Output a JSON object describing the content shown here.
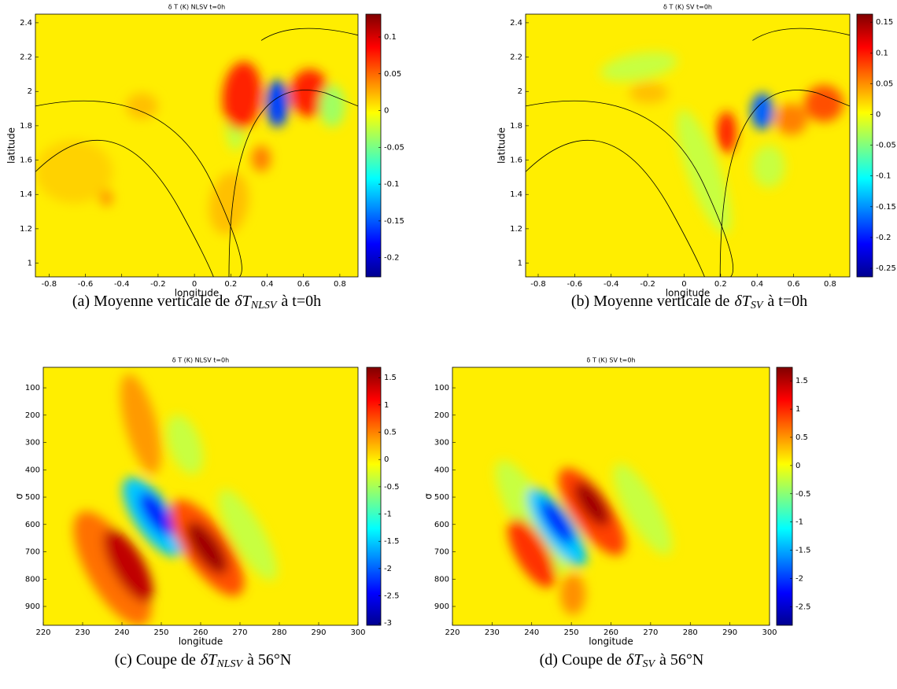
{
  "chart_data": [
    {
      "type": "contour",
      "title": "δ T (K) NLSV t=0h",
      "xlabel": "longitude",
      "ylabel": "latitude",
      "xlim": [
        -0.875,
        0.9
      ],
      "xticks": [
        -0.8,
        -0.6,
        -0.4,
        -0.2,
        0,
        0.2,
        0.4,
        0.6,
        0.8
      ],
      "ylim": [
        0.92,
        2.45
      ],
      "yticks": [
        1,
        1.2,
        1.4,
        1.6,
        1.8,
        2,
        2.2,
        2.4
      ],
      "clim": [
        -0.226,
        0.131
      ],
      "cticks": [
        0.1,
        0.05,
        0,
        -0.05,
        -0.1,
        -0.15,
        -0.2
      ],
      "caption": {
        "label": "(a) Moyenne verticale de",
        "symbol": "δT",
        "sub": "NLSV",
        "rest": "à t=0h"
      }
    },
    {
      "type": "contour",
      "title": "δ T (K) SV t=0h",
      "xlabel": "longitude",
      "ylabel": "latitude",
      "xlim": [
        -0.869,
        0.908
      ],
      "xticks": [
        -0.8,
        -0.6,
        -0.4,
        -0.2,
        0,
        0.2,
        0.4,
        0.6,
        0.8
      ],
      "ylim": [
        0.92,
        2.45
      ],
      "yticks": [
        1,
        1.2,
        1.4,
        1.6,
        1.8,
        2,
        2.2,
        2.4
      ],
      "clim": [
        -0.264,
        0.163
      ],
      "cticks": [
        0.15,
        0.1,
        0.05,
        0,
        -0.05,
        -0.1,
        -0.15,
        -0.2,
        -0.25
      ],
      "caption": {
        "label": "(b) Moyenne verticale de",
        "symbol": "δT",
        "sub": "SV",
        "rest": "à t=0h"
      }
    },
    {
      "type": "contour",
      "title": "δ T (K) NLSV t=0h",
      "xlabel": "longitude",
      "ylabel": "σ",
      "xlim": [
        220,
        300
      ],
      "xticks": [
        220,
        230,
        240,
        250,
        260,
        270,
        280,
        290,
        300
      ],
      "ylim": [
        969,
        25
      ],
      "yticks": [
        100,
        200,
        300,
        400,
        500,
        600,
        700,
        800,
        900
      ],
      "clim": [
        -3.04,
        1.69
      ],
      "cticks": [
        1.5,
        1,
        0.5,
        0,
        -0.5,
        -1,
        -1.5,
        -2,
        -2.5,
        -3
      ],
      "caption": {
        "label": "(c) Coupe de",
        "symbol": "δT",
        "sub": "NLSV",
        "rest": "à 56°N"
      }
    },
    {
      "type": "contour",
      "title": "δ T (K) SV t=0h",
      "xlabel": "longitude",
      "ylabel": "σ",
      "xlim": [
        220,
        300
      ],
      "xticks": [
        220,
        230,
        240,
        250,
        260,
        270,
        280,
        290,
        300
      ],
      "ylim": [
        969,
        25
      ],
      "yticks": [
        100,
        200,
        300,
        400,
        500,
        600,
        700,
        800,
        900
      ],
      "clim": [
        -2.83,
        1.74
      ],
      "cticks": [
        1.5,
        1,
        0.5,
        0,
        -0.5,
        -1,
        -1.5,
        -2,
        -2.5
      ],
      "caption": {
        "label": "(d) Coupe de",
        "symbol": "δT",
        "sub": "SV",
        "rest": "à 56°N"
      }
    }
  ]
}
